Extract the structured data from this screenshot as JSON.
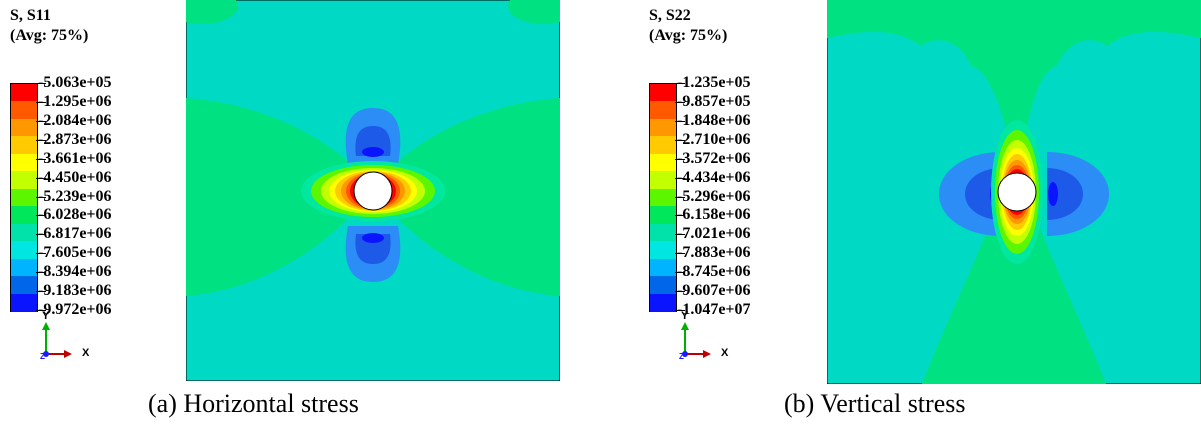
{
  "panel_a": {
    "legend_title_line1": "S, S11",
    "legend_title_line2": "(Avg: 75%)",
    "legend_values": [
      "-5.063e+05",
      "-1.295e+06",
      "-2.084e+06",
      "-2.873e+06",
      "-3.661e+06",
      "-4.450e+06",
      "-5.239e+06",
      "-6.028e+06",
      "-6.817e+06",
      "-7.605e+06",
      "-8.394e+06",
      "-9.183e+06",
      "-9.972e+06"
    ],
    "axis_y": "Y",
    "axis_x": "X",
    "axis_z": "Z",
    "caption": "(a) Horizontal stress"
  },
  "panel_b": {
    "legend_title_line1": "S, S22",
    "legend_title_line2": "(Avg: 75%)",
    "legend_values": [
      "-1.235e+05",
      "-9.857e+05",
      "-1.848e+06",
      "-2.710e+06",
      "-3.572e+06",
      "-4.434e+06",
      "-5.296e+06",
      "-6.158e+06",
      "-7.021e+06",
      "-7.883e+06",
      "-8.745e+06",
      "-9.607e+06",
      "-1.047e+07"
    ],
    "axis_y": "Y",
    "axis_x": "X",
    "axis_z": "Z",
    "caption": "(b) Vertical stress"
  },
  "colormap": [
    "#ff0000",
    "#ff5a00",
    "#ff9800",
    "#ffcb00",
    "#ffff00",
    "#c2ff00",
    "#5cf600",
    "#00e75c",
    "#00e2a9",
    "#00e7e2",
    "#00b4ff",
    "#0068e8",
    "#0a14ff"
  ],
  "background_color": "#00d9c3"
}
